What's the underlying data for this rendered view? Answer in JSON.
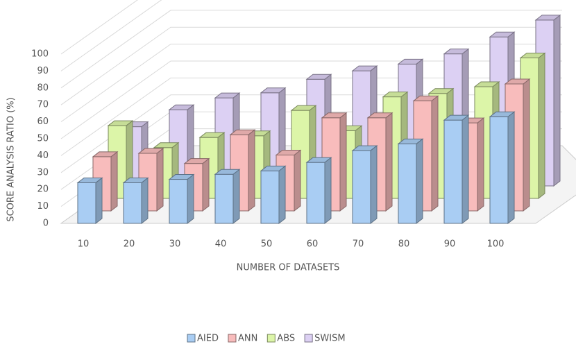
{
  "chart_data": {
    "type": "bar3d",
    "y_label": "SCORE ANALYSIS RATIO (%)",
    "x_label": "NUMBER OF DATASETS",
    "categories": [
      "10",
      "20",
      "30",
      "40",
      "50",
      "60",
      "70",
      "80",
      "90",
      "100"
    ],
    "series": [
      {
        "name": "AIED",
        "color": "#a9cdf3",
        "values": [
          24,
          24,
          26,
          29,
          31,
          36,
          43,
          47,
          61,
          63
        ]
      },
      {
        "name": "ANN",
        "color": "#f8bcbc",
        "values": [
          32,
          34,
          28,
          45,
          33,
          55,
          55,
          65,
          52,
          75
        ]
      },
      {
        "name": "ABS",
        "color": "#dcf5a8",
        "values": [
          43,
          30,
          36,
          37,
          52,
          40,
          60,
          62,
          66,
          83
        ]
      },
      {
        "name": "SWISM",
        "color": "#dcd0f3",
        "values": [
          35,
          45,
          52,
          55,
          63,
          68,
          72,
          78,
          88,
          98
        ]
      }
    ],
    "ylim": [
      0,
      100
    ],
    "yticks": [
      0,
      10,
      20,
      30,
      40,
      50,
      60,
      70,
      80,
      90,
      100
    ],
    "grid": true
  }
}
